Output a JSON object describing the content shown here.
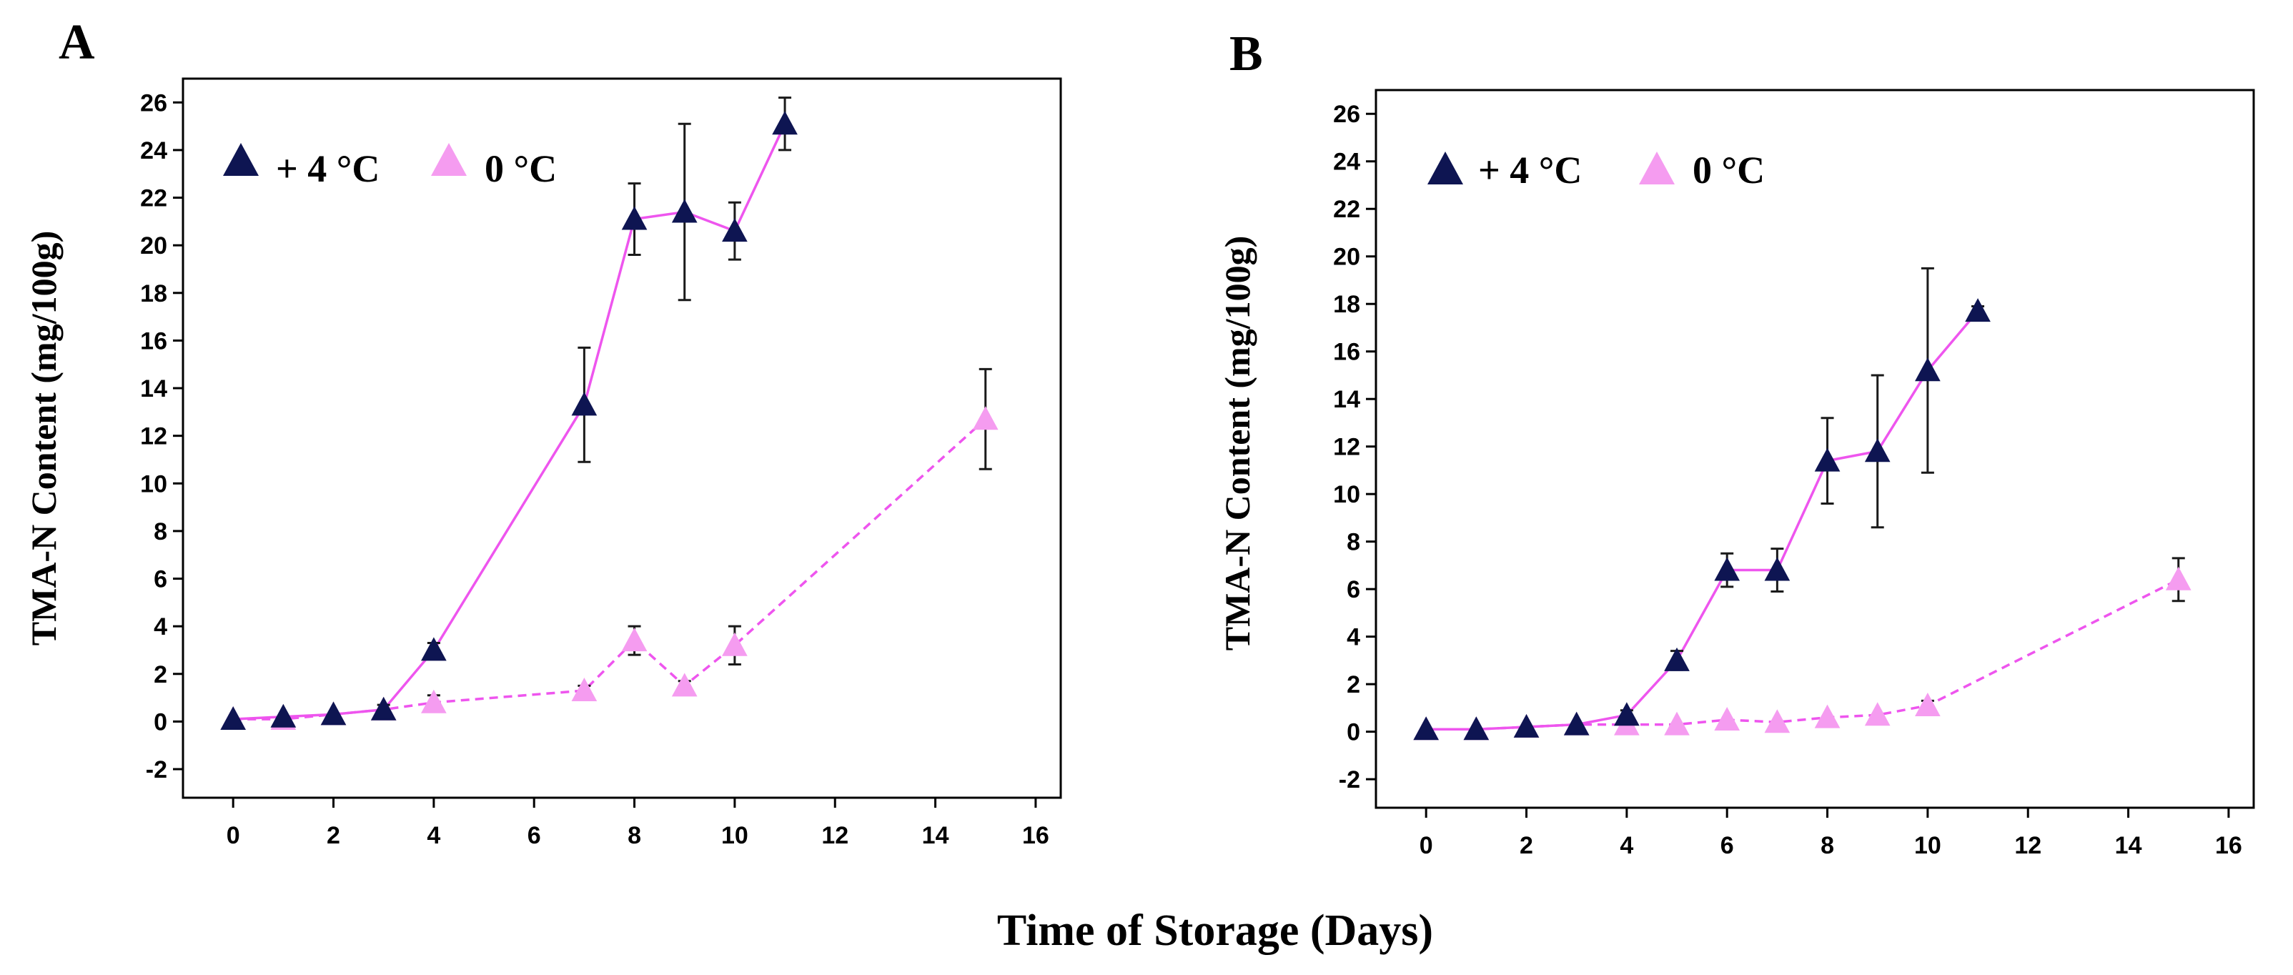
{
  "x_axis_label": "Time of Storage (Days)",
  "colors": {
    "plus4": "#0e1552",
    "zero": "#f59cf0",
    "line": "#ee55ee",
    "errbar": "#1a1a1a"
  },
  "chart_data": [
    {
      "panel": "A",
      "type": "line",
      "ylabel": "TMA-N Content (mg/100g)",
      "xlim": [
        -1,
        16.5
      ],
      "ylim": [
        -3.2,
        27
      ],
      "xticks": [
        0,
        2,
        4,
        6,
        8,
        10,
        12,
        14,
        16
      ],
      "yticks": [
        -2,
        0,
        2,
        4,
        6,
        8,
        10,
        12,
        14,
        16,
        18,
        20,
        22,
        24,
        26
      ],
      "legend": [
        "+ 4 °C",
        "0 °C"
      ],
      "series": [
        {
          "name": "+ 4 °C",
          "line_style": "solid",
          "x": [
            0,
            1,
            2,
            3,
            4,
            7,
            8,
            9,
            10,
            11
          ],
          "y": [
            0.1,
            0.2,
            0.3,
            0.5,
            3.0,
            13.3,
            21.1,
            21.4,
            20.6,
            25.1
          ],
          "err": [
            0,
            0.1,
            0.1,
            0.2,
            0.3,
            2.4,
            1.5,
            3.7,
            1.2,
            1.1
          ]
        },
        {
          "name": "0 °C",
          "line_style": "dashed",
          "x": [
            0,
            1,
            2,
            3,
            4,
            7,
            8,
            9,
            10,
            15
          ],
          "y": [
            0.1,
            0.1,
            0.3,
            0.5,
            0.8,
            1.3,
            3.4,
            1.5,
            3.2,
            12.7
          ],
          "err": [
            0,
            0.1,
            0.1,
            0.1,
            0.3,
            0.2,
            0.6,
            0.2,
            0.8,
            2.1
          ]
        }
      ]
    },
    {
      "panel": "B",
      "type": "line",
      "ylabel": "TMA-N Content (mg/100g)",
      "xlim": [
        -1,
        16.5
      ],
      "ylim": [
        -3.2,
        27
      ],
      "xticks": [
        0,
        2,
        4,
        6,
        8,
        10,
        12,
        14,
        16
      ],
      "yticks": [
        -2,
        0,
        2,
        4,
        6,
        8,
        10,
        12,
        14,
        16,
        18,
        20,
        22,
        24,
        26
      ],
      "legend": [
        "+ 4 °C",
        "0 °C"
      ],
      "series": [
        {
          "name": "+ 4 °C",
          "line_style": "solid",
          "x": [
            0,
            1,
            2,
            3,
            4,
            5,
            6,
            7,
            8,
            9,
            10,
            11
          ],
          "y": [
            0.1,
            0.1,
            0.2,
            0.3,
            0.7,
            3.0,
            6.8,
            6.8,
            11.4,
            11.8,
            15.2,
            17.7
          ],
          "err": [
            0,
            0,
            0,
            0.1,
            0.2,
            0.4,
            0.7,
            0.9,
            1.8,
            3.2,
            4.3,
            0.2
          ]
        },
        {
          "name": "0 °C",
          "line_style": "dashed",
          "x": [
            0,
            1,
            2,
            3,
            4,
            5,
            6,
            7,
            8,
            9,
            10,
            15
          ],
          "y": [
            0.1,
            0.1,
            0.2,
            0.3,
            0.3,
            0.3,
            0.5,
            0.4,
            0.6,
            0.7,
            1.1,
            6.4
          ],
          "err": [
            0,
            0,
            0,
            0,
            0,
            0,
            0.1,
            0.1,
            0.1,
            0.1,
            0.2,
            0.9
          ]
        }
      ]
    }
  ]
}
